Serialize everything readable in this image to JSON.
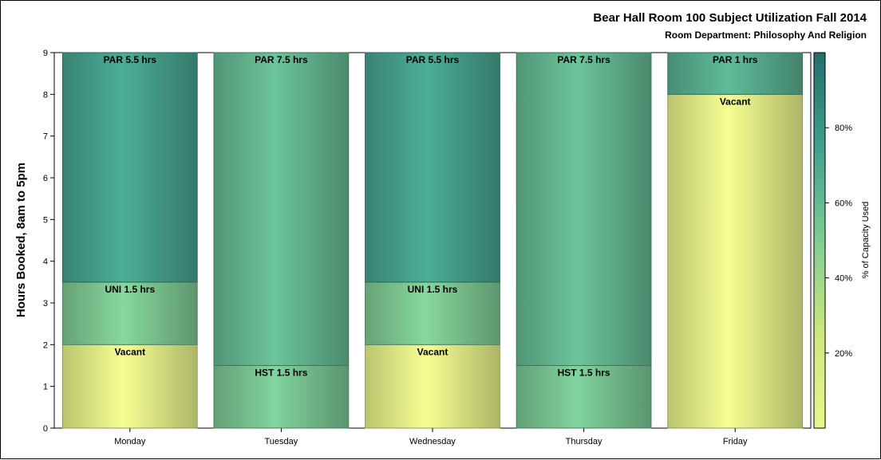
{
  "chart_data": {
    "type": "bar",
    "stacked": true,
    "title": "Bear Hall Room 100 Subject Utilization Fall 2014",
    "subtitle": "Room Department:  Philosophy And Religion",
    "ylabel": "Hours Booked, 8am to 5pm",
    "xlabel": "",
    "ylim": [
      0,
      9
    ],
    "yticks": [
      "0",
      "1",
      "2",
      "3",
      "4",
      "5",
      "6",
      "7",
      "8",
      "9"
    ],
    "categories": [
      "Monday",
      "Tuesday",
      "Wednesday",
      "Thursday",
      "Friday"
    ],
    "stacks": [
      [
        {
          "label": "Vacant",
          "hours": 2,
          "capacity_pct": 0
        },
        {
          "label": "UNI 1.5 hrs",
          "hours": 1.5,
          "capacity_pct": 50
        },
        {
          "label": "PAR 5.5 hrs",
          "hours": 5.5,
          "capacity_pct": 72
        }
      ],
      [
        {
          "label": "HST 1.5 hrs",
          "hours": 1.5,
          "capacity_pct": 52
        },
        {
          "label": "PAR 7.5 hrs",
          "hours": 7.5,
          "capacity_pct": 60
        }
      ],
      [
        {
          "label": "Vacant",
          "hours": 2,
          "capacity_pct": 0
        },
        {
          "label": "UNI 1.5 hrs",
          "hours": 1.5,
          "capacity_pct": 50
        },
        {
          "label": "PAR 5.5 hrs",
          "hours": 5.5,
          "capacity_pct": 72
        }
      ],
      [
        {
          "label": "HST 1.5 hrs",
          "hours": 1.5,
          "capacity_pct": 52
        },
        {
          "label": "PAR 7.5 hrs",
          "hours": 7.5,
          "capacity_pct": 60
        }
      ],
      [
        {
          "label": "Vacant",
          "hours": 8,
          "capacity_pct": 0
        },
        {
          "label": "PAR 1 hrs",
          "hours": 1,
          "capacity_pct": 65
        }
      ]
    ],
    "colorbar": {
      "label": "% of Capacity Used",
      "ticks": [
        {
          "value": 20,
          "label": "20%"
        },
        {
          "value": 40,
          "label": "40%"
        },
        {
          "value": 60,
          "label": "60%"
        },
        {
          "value": 80,
          "label": "80%"
        }
      ],
      "range": [
        0,
        100
      ],
      "colors": [
        "#e8f68a",
        "#cde87e",
        "#7fcc94",
        "#3f9f8e",
        "#246e6a"
      ],
      "placement": "right"
    },
    "grid": false,
    "legend": "right"
  }
}
